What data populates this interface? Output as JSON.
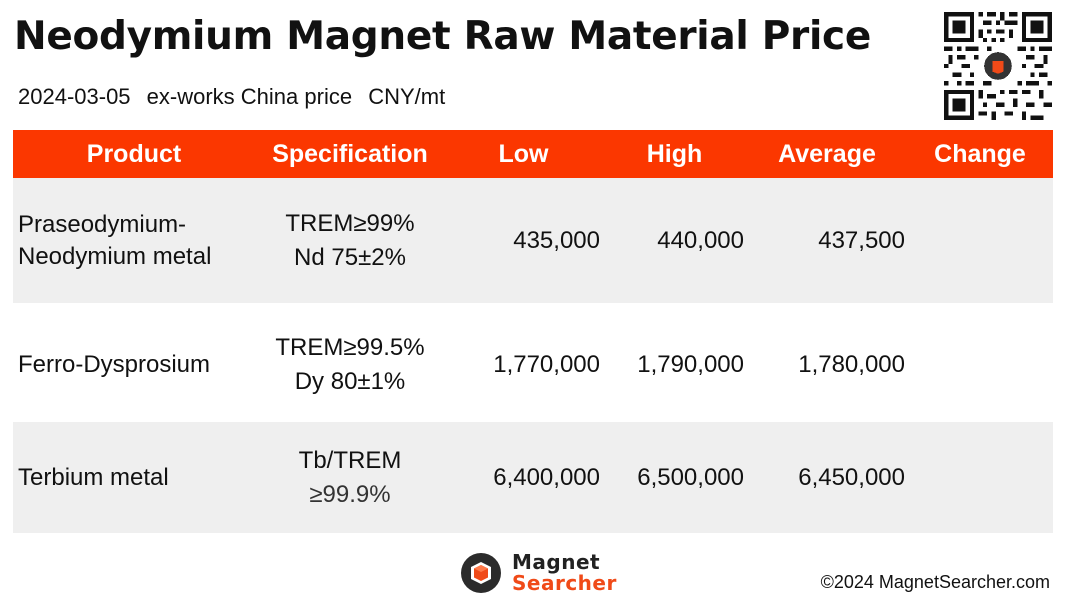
{
  "header": {
    "title": "Neodymium Magnet Raw Material Price",
    "date": "2024-03-05",
    "basis": "ex-works China price",
    "unit": "CNY/mt"
  },
  "colors": {
    "header_bg": "#fb3700",
    "row_shade": "#efefef",
    "logo_accent": "#f04a18"
  },
  "table": {
    "columns": [
      "Product",
      "Specification",
      "Low",
      "High",
      "Average",
      "Change"
    ],
    "rows": [
      {
        "product_line1": "Praseodymium-",
        "product_line2": "Neodymium metal",
        "spec_line1": "TREM≥99%",
        "spec_line2": "Nd 75±2%",
        "low": "435,000",
        "high": "440,000",
        "average": "437,500",
        "change": ""
      },
      {
        "product_line1": "Ferro-Dysprosium",
        "product_line2": "",
        "spec_line1": "TREM≥99.5%",
        "spec_line2": "Dy 80±1%",
        "low": "1,770,000",
        "high": "1,790,000",
        "average": "1,780,000",
        "change": ""
      },
      {
        "product_line1": "Terbium metal",
        "product_line2": "",
        "spec_line1": "Tb/TREM",
        "spec_line2": "≥99.9%",
        "low": "6,400,000",
        "high": "6,500,000",
        "average": "6,450,000",
        "change": ""
      }
    ]
  },
  "footer": {
    "logo_line1": "Magnet",
    "logo_line2": "Searcher",
    "copyright": "©2024 MagnetSearcher.com"
  },
  "icons": {
    "qr": "qr-code-icon",
    "logo": "magnet-searcher-logo-icon"
  }
}
